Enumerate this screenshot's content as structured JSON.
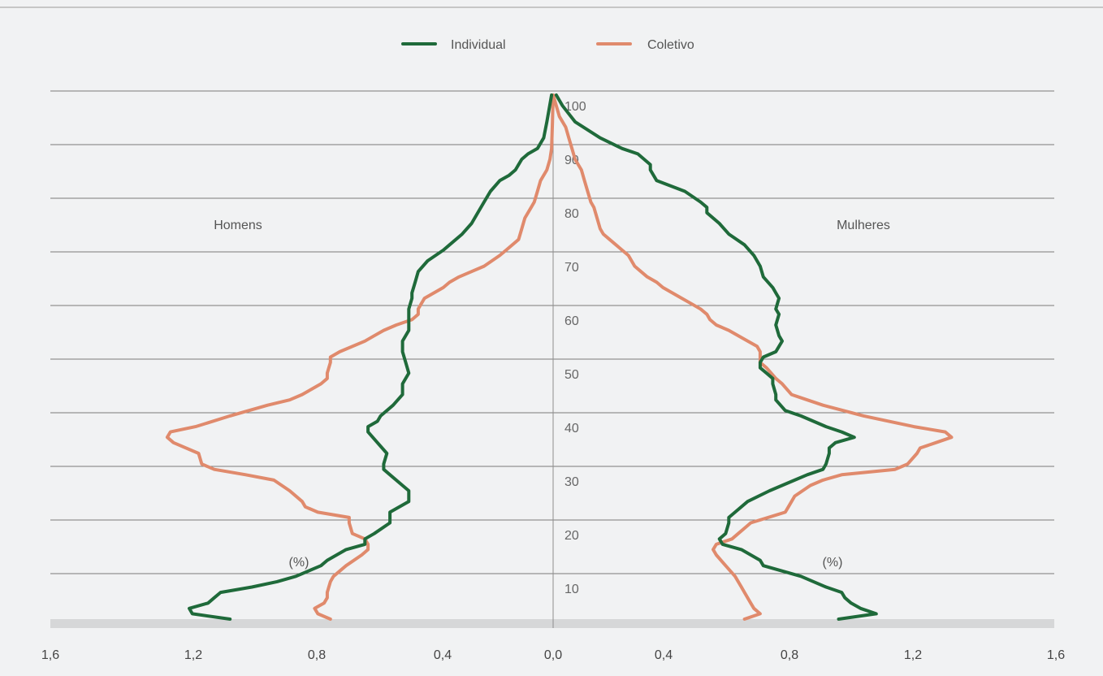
{
  "legend": {
    "individual": "Individual",
    "coletivo": "Coletivo"
  },
  "labels": {
    "left": "Homens",
    "right": "Mulheres",
    "left_unit": "(%)",
    "right_unit": "(%)"
  },
  "colors": {
    "individual": "#1f6a3a",
    "coletivo": "#e08a6c",
    "background": "#f1f2f3",
    "axis_band": "#d6d7d8"
  },
  "chart_data": {
    "type": "line",
    "subtype": "population-pyramid",
    "y_axis": {
      "label": "",
      "ticks": [
        "10",
        "20",
        "30",
        "40",
        "50",
        "60",
        "70",
        "80",
        "90",
        "100"
      ],
      "range": [
        2,
        100
      ]
    },
    "x_axis": {
      "label": "",
      "ticks": [
        "1,6",
        "1,2",
        "0,8",
        "0,4",
        "0,0",
        "0,4",
        "0,8",
        "1,2",
        "1,6"
      ],
      "range": [
        -1.6,
        1.6
      ]
    },
    "series": [
      {
        "name": "Individual",
        "side": "Homens",
        "points": [
          [
            2,
            1.03
          ],
          [
            3,
            1.15
          ],
          [
            4,
            1.16
          ],
          [
            5,
            1.1
          ],
          [
            6,
            1.08
          ],
          [
            7,
            1.06
          ],
          [
            8,
            0.96
          ],
          [
            9,
            0.88
          ],
          [
            10,
            0.82
          ],
          [
            12,
            0.74
          ],
          [
            13,
            0.72
          ],
          [
            15,
            0.66
          ],
          [
            16,
            0.6
          ],
          [
            17,
            0.6
          ],
          [
            18,
            0.57
          ],
          [
            20,
            0.52
          ],
          [
            22,
            0.52
          ],
          [
            24,
            0.46
          ],
          [
            25,
            0.46
          ],
          [
            26,
            0.46
          ],
          [
            27,
            0.48
          ],
          [
            29,
            0.52
          ],
          [
            30,
            0.54
          ],
          [
            31,
            0.54
          ],
          [
            33,
            0.53
          ],
          [
            35,
            0.56
          ],
          [
            37,
            0.59
          ],
          [
            38,
            0.59
          ],
          [
            39,
            0.56
          ],
          [
            40,
            0.55
          ],
          [
            42,
            0.51
          ],
          [
            44,
            0.48
          ],
          [
            46,
            0.48
          ],
          [
            48,
            0.46
          ],
          [
            50,
            0.47
          ],
          [
            52,
            0.48
          ],
          [
            54,
            0.48
          ],
          [
            56,
            0.46
          ],
          [
            58,
            0.46
          ],
          [
            60,
            0.46
          ],
          [
            62,
            0.45
          ],
          [
            63,
            0.45
          ],
          [
            65,
            0.44
          ],
          [
            67,
            0.43
          ],
          [
            69,
            0.4
          ],
          [
            71,
            0.35
          ],
          [
            72,
            0.33
          ],
          [
            74,
            0.29
          ],
          [
            76,
            0.26
          ],
          [
            78,
            0.24
          ],
          [
            80,
            0.22
          ],
          [
            82,
            0.2
          ],
          [
            84,
            0.17
          ],
          [
            85,
            0.14
          ],
          [
            86,
            0.12
          ],
          [
            88,
            0.1
          ],
          [
            89,
            0.08
          ],
          [
            90,
            0.05
          ],
          [
            92,
            0.03
          ],
          [
            95,
            0.02
          ],
          [
            100,
            0.005
          ]
        ]
      },
      {
        "name": "Coletivo",
        "side": "Homens",
        "points": [
          [
            2,
            0.71
          ],
          [
            3,
            0.75
          ],
          [
            4,
            0.76
          ],
          [
            5,
            0.73
          ],
          [
            6,
            0.72
          ],
          [
            7,
            0.72
          ],
          [
            9,
            0.71
          ],
          [
            10,
            0.7
          ],
          [
            12,
            0.66
          ],
          [
            14,
            0.61
          ],
          [
            15,
            0.59
          ],
          [
            16,
            0.59
          ],
          [
            17,
            0.6
          ],
          [
            18,
            0.64
          ],
          [
            20,
            0.65
          ],
          [
            21,
            0.65
          ],
          [
            22,
            0.75
          ],
          [
            23,
            0.79
          ],
          [
            24,
            0.8
          ],
          [
            26,
            0.84
          ],
          [
            28,
            0.89
          ],
          [
            29,
            0.98
          ],
          [
            30,
            1.08
          ],
          [
            31,
            1.12
          ],
          [
            33,
            1.13
          ],
          [
            35,
            1.21
          ],
          [
            36,
            1.23
          ],
          [
            37,
            1.22
          ],
          [
            38,
            1.14
          ],
          [
            40,
            1.03
          ],
          [
            41,
            0.97
          ],
          [
            42,
            0.91
          ],
          [
            43,
            0.84
          ],
          [
            44,
            0.8
          ],
          [
            45,
            0.77
          ],
          [
            46,
            0.74
          ],
          [
            47,
            0.72
          ],
          [
            48,
            0.72
          ],
          [
            50,
            0.71
          ],
          [
            51,
            0.71
          ],
          [
            52,
            0.68
          ],
          [
            54,
            0.6
          ],
          [
            55,
            0.57
          ],
          [
            56,
            0.54
          ],
          [
            57,
            0.5
          ],
          [
            58,
            0.45
          ],
          [
            59,
            0.43
          ],
          [
            60,
            0.43
          ],
          [
            62,
            0.41
          ],
          [
            64,
            0.35
          ],
          [
            65,
            0.33
          ],
          [
            66,
            0.3
          ],
          [
            67,
            0.26
          ],
          [
            68,
            0.22
          ],
          [
            70,
            0.17
          ],
          [
            71,
            0.15
          ],
          [
            73,
            0.11
          ],
          [
            75,
            0.1
          ],
          [
            77,
            0.09
          ],
          [
            79,
            0.07
          ],
          [
            80,
            0.06
          ],
          [
            82,
            0.05
          ],
          [
            84,
            0.04
          ],
          [
            86,
            0.02
          ],
          [
            88,
            0.01
          ],
          [
            90,
            0.005
          ],
          [
            95,
            0.002
          ],
          [
            100,
            0
          ]
        ]
      },
      {
        "name": "Individual",
        "side": "Mulheres",
        "points": [
          [
            2,
            0.91
          ],
          [
            3,
            1.03
          ],
          [
            4,
            0.98
          ],
          [
            5,
            0.95
          ],
          [
            6,
            0.93
          ],
          [
            7,
            0.92
          ],
          [
            8,
            0.87
          ],
          [
            10,
            0.79
          ],
          [
            12,
            0.67
          ],
          [
            13,
            0.66
          ],
          [
            15,
            0.6
          ],
          [
            16,
            0.54
          ],
          [
            17,
            0.53
          ],
          [
            18,
            0.55
          ],
          [
            20,
            0.56
          ],
          [
            21,
            0.56
          ],
          [
            22,
            0.58
          ],
          [
            24,
            0.62
          ],
          [
            26,
            0.69
          ],
          [
            28,
            0.77
          ],
          [
            29,
            0.81
          ],
          [
            30,
            0.86
          ],
          [
            31,
            0.87
          ],
          [
            33,
            0.88
          ],
          [
            34,
            0.88
          ],
          [
            35,
            0.9
          ],
          [
            36,
            0.96
          ],
          [
            37,
            0.92
          ],
          [
            38,
            0.87
          ],
          [
            40,
            0.79
          ],
          [
            41,
            0.74
          ],
          [
            43,
            0.71
          ],
          [
            44,
            0.71
          ],
          [
            46,
            0.7
          ],
          [
            47,
            0.7
          ],
          [
            48,
            0.68
          ],
          [
            49,
            0.66
          ],
          [
            50,
            0.66
          ],
          [
            51,
            0.67
          ],
          [
            52,
            0.71
          ],
          [
            54,
            0.73
          ],
          [
            55,
            0.72
          ],
          [
            57,
            0.71
          ],
          [
            59,
            0.72
          ],
          [
            60,
            0.71
          ],
          [
            62,
            0.72
          ],
          [
            63,
            0.71
          ],
          [
            64,
            0.7
          ],
          [
            66,
            0.67
          ],
          [
            68,
            0.66
          ],
          [
            70,
            0.64
          ],
          [
            72,
            0.61
          ],
          [
            74,
            0.56
          ],
          [
            76,
            0.53
          ],
          [
            78,
            0.49
          ],
          [
            79,
            0.49
          ],
          [
            80,
            0.47
          ],
          [
            82,
            0.42
          ],
          [
            84,
            0.33
          ],
          [
            86,
            0.31
          ],
          [
            87,
            0.31
          ],
          [
            89,
            0.27
          ],
          [
            90,
            0.22
          ],
          [
            92,
            0.15
          ],
          [
            95,
            0.07
          ],
          [
            98,
            0.03
          ],
          [
            100,
            0.01
          ]
        ]
      },
      {
        "name": "Coletivo",
        "side": "Mulheres",
        "points": [
          [
            2,
            0.61
          ],
          [
            3,
            0.66
          ],
          [
            4,
            0.64
          ],
          [
            5,
            0.63
          ],
          [
            7,
            0.61
          ],
          [
            8,
            0.6
          ],
          [
            10,
            0.58
          ],
          [
            12,
            0.55
          ],
          [
            14,
            0.52
          ],
          [
            15,
            0.51
          ],
          [
            16,
            0.52
          ],
          [
            17,
            0.57
          ],
          [
            18,
            0.59
          ],
          [
            19,
            0.61
          ],
          [
            20,
            0.63
          ],
          [
            22,
            0.74
          ],
          [
            23,
            0.75
          ],
          [
            25,
            0.77
          ],
          [
            27,
            0.82
          ],
          [
            28,
            0.86
          ],
          [
            29,
            0.92
          ],
          [
            30,
            1.09
          ],
          [
            31,
            1.13
          ],
          [
            33,
            1.16
          ],
          [
            34,
            1.17
          ],
          [
            35,
            1.22
          ],
          [
            36,
            1.27
          ],
          [
            37,
            1.25
          ],
          [
            38,
            1.15
          ],
          [
            40,
            0.99
          ],
          [
            42,
            0.86
          ],
          [
            43,
            0.81
          ],
          [
            44,
            0.76
          ],
          [
            46,
            0.73
          ],
          [
            47,
            0.71
          ],
          [
            49,
            0.68
          ],
          [
            50,
            0.66
          ],
          [
            52,
            0.66
          ],
          [
            53,
            0.65
          ],
          [
            54,
            0.62
          ],
          [
            56,
            0.56
          ],
          [
            57,
            0.52
          ],
          [
            58,
            0.5
          ],
          [
            59,
            0.49
          ],
          [
            60,
            0.47
          ],
          [
            61,
            0.44
          ],
          [
            62,
            0.41
          ],
          [
            64,
            0.35
          ],
          [
            65,
            0.33
          ],
          [
            66,
            0.3
          ],
          [
            67,
            0.28
          ],
          [
            68,
            0.26
          ],
          [
            70,
            0.24
          ],
          [
            72,
            0.2
          ],
          [
            73,
            0.18
          ],
          [
            74,
            0.16
          ],
          [
            75,
            0.15
          ],
          [
            77,
            0.14
          ],
          [
            79,
            0.13
          ],
          [
            80,
            0.12
          ],
          [
            82,
            0.11
          ],
          [
            84,
            0.1
          ],
          [
            86,
            0.09
          ],
          [
            88,
            0.07
          ],
          [
            90,
            0.06
          ],
          [
            92,
            0.05
          ],
          [
            94,
            0.04
          ],
          [
            96,
            0.02
          ],
          [
            98,
            0.01
          ],
          [
            100,
            0
          ]
        ]
      }
    ],
    "grid": true,
    "legend_position": "top-center"
  }
}
